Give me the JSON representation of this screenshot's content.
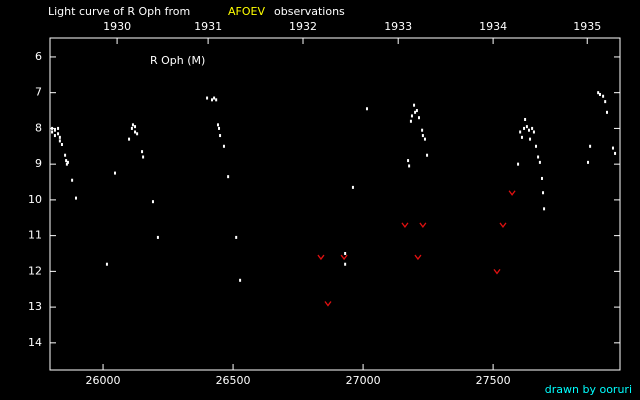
{
  "chart_data": {
    "type": "scatter",
    "title": "Light curve of R Oph from",
    "title_source": "AFOEV",
    "title_suffix": "observations",
    "annotation": "R Oph (M)",
    "credit": "drawn by ooruri",
    "y_inverted": true,
    "xlim": [
      25796,
      27988
    ],
    "ylim": [
      5.47,
      14.76
    ],
    "xticks": [
      26000,
      26500,
      27000,
      27500
    ],
    "yticks": [
      6,
      7,
      8,
      9,
      10,
      11,
      12,
      13,
      14
    ],
    "x2ticks": [
      {
        "value": 26054,
        "label": "1930"
      },
      {
        "value": 26404,
        "label": "1931"
      },
      {
        "value": 26769,
        "label": "1932"
      },
      {
        "value": 27135,
        "label": "1933"
      },
      {
        "value": 27500,
        "label": "1934"
      },
      {
        "value": 27862,
        "label": "1935"
      }
    ],
    "series": [
      {
        "color": "#ffffff",
        "marker": "dot",
        "x": [
          25804,
          25804,
          25815,
          25815,
          25827,
          25827,
          25834,
          25834,
          25842,
          25854,
          25858,
          25861,
          25865,
          25881,
          25896,
          26015,
          26046,
          26100,
          26111,
          26115,
          26123,
          26123,
          26131,
          26150,
          26154,
          26192,
          26211,
          26400,
          26419,
          26427,
          26435,
          26442,
          26446,
          26450,
          26465,
          26481,
          26512,
          26527,
          26931,
          26931,
          26961,
          27015,
          27173,
          27177,
          27184,
          27188,
          27196,
          27200,
          27207,
          27215,
          27227,
          27230,
          27238,
          27246,
          27596,
          27604,
          27611,
          27619,
          27623,
          27630,
          27638,
          27642,
          27650,
          27657,
          27665,
          27673,
          27680,
          27688,
          27692,
          27696,
          27865,
          27873,
          27904,
          27911,
          27923,
          27931,
          27938,
          27961,
          27969
        ],
        "values": [
          8.0,
          8.1,
          8.05,
          8.2,
          8.0,
          8.15,
          8.25,
          8.35,
          8.45,
          8.75,
          8.9,
          9.0,
          8.95,
          9.45,
          9.95,
          11.8,
          9.25,
          8.3,
          8.0,
          7.9,
          7.95,
          8.1,
          8.15,
          8.65,
          8.8,
          10.05,
          11.05,
          7.15,
          7.2,
          7.15,
          7.2,
          7.9,
          8.0,
          8.2,
          8.5,
          9.35,
          11.05,
          12.25,
          11.5,
          11.8,
          9.65,
          7.45,
          8.9,
          9.05,
          7.8,
          7.65,
          7.35,
          7.55,
          7.5,
          7.7,
          8.05,
          8.2,
          8.3,
          8.75,
          9.0,
          8.1,
          8.25,
          8.0,
          7.75,
          7.95,
          8.05,
          8.3,
          8.0,
          8.1,
          8.5,
          8.8,
          8.95,
          9.4,
          9.8,
          10.25,
          8.95,
          8.5,
          7.0,
          7.05,
          7.1,
          7.25,
          7.55,
          8.55,
          8.7
        ]
      },
      {
        "color": "#e01010",
        "marker": "v",
        "x": [
          26838,
          26865,
          26927,
          27161,
          27211,
          27230,
          27515,
          27538,
          27573
        ],
        "values": [
          11.6,
          12.9,
          11.6,
          10.7,
          11.6,
          10.7,
          12.0,
          10.7,
          9.8
        ]
      }
    ]
  }
}
